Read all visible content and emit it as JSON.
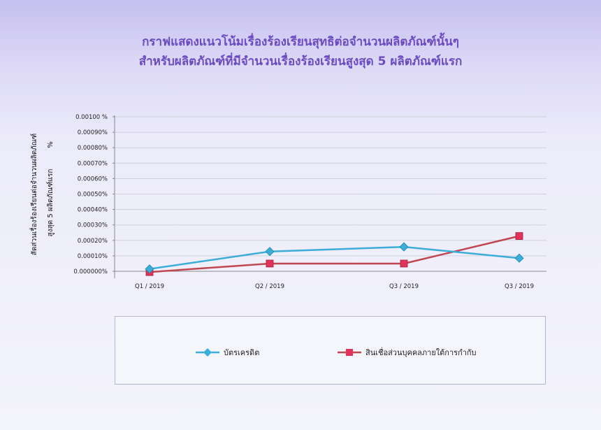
{
  "title": {
    "line1": "กราฟแสดงแนวโน้มเรื่องร้องเรียนสุทธิต่อจำนวนผลิตภัณฑ์นั้นๆ",
    "line2": "สำหรับผลิตภัณฑ์ที่มีจำนวนเรื่องร้องเรียนสูงสุด 5 ผลิตภัณฑ์แรก"
  },
  "colors": {
    "title": "#6a4bc0",
    "series1": "#3aaed8",
    "series2": "#c0474f"
  },
  "chart_data": {
    "type": "line",
    "title": "กราฟแสดงแนวโน้มเรื่องร้องเรียนสุทธิต่อจำนวนผลิตภัณฑ์นั้นๆ สำหรับผลิตภัณฑ์ที่มีจำนวนเรื่องร้องเรียนสูงสุด 5 ผลิตภัณฑ์แรก",
    "categories": [
      "Q1 / 2019",
      "Q2 / 2019",
      "Q3 / 2019",
      "Q3 / 2019"
    ],
    "ylabel_line1": "สัดส่วนเรื่องร้องเรียนต่อจำนวนผลิตภัณฑ์",
    "ylabel_line2": "สูงสุด 5 ผลิตภัณฑ์แรก",
    "ylabel_unit": "%",
    "ylim": [
      0,
      0.001
    ],
    "yticks": [
      "0.000000%",
      "0.00010%",
      "0.00020%",
      "0.00030%",
      "0.00040%",
      "0.00050%",
      "0.00060%",
      "0.00070%",
      "0.00080%",
      "0.00090%",
      "0.00100 %"
    ],
    "grid": true,
    "legend_position": "bottom",
    "series": [
      {
        "name": "บัตรเครดิต",
        "values": [
          1.5e-05,
          0.000128,
          0.000158,
          8.5e-05
        ]
      },
      {
        "name": "สินเชื่อส่วนบุคคลภายใต้การกำกับ",
        "values": [
          -5e-06,
          5e-05,
          5e-05,
          0.000228
        ]
      }
    ]
  }
}
